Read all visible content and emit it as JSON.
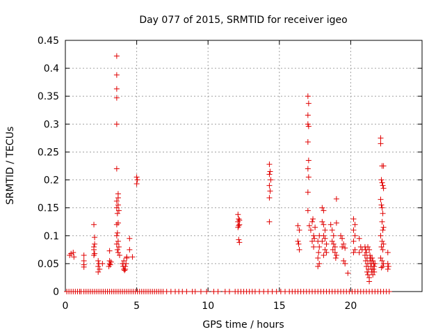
{
  "chart_data": {
    "type": "scatter",
    "title": "Day 077 of 2015, SRMTID for receiver igeo",
    "xlabel": "GPS time / hours",
    "ylabel": "SRMTID / TECUs",
    "xlim": [
      0,
      25
    ],
    "ylim": [
      0,
      0.45
    ],
    "xticks": [
      0,
      5,
      10,
      15,
      20
    ],
    "yticks": [
      0,
      0.05,
      0.1,
      0.15,
      0.2,
      0.25,
      0.3,
      0.35,
      0.4,
      0.45
    ],
    "xtick_labels": [
      "0",
      "5",
      "10",
      "15",
      "20"
    ],
    "ytick_labels": [
      "0",
      "0.05",
      "0.1",
      "0.15",
      "0.2",
      "0.25",
      "0.3",
      "0.35",
      "0.4",
      "0.45"
    ],
    "grid": true,
    "marker": "+",
    "color": "#e00000",
    "series": [
      {
        "name": "SRMTID",
        "points": [
          [
            0.3,
            0.065
          ],
          [
            0.4,
            0.068
          ],
          [
            0.55,
            0.07
          ],
          [
            0.6,
            0.062
          ],
          [
            1.3,
            0.065
          ],
          [
            1.3,
            0.055
          ],
          [
            1.3,
            0.048
          ],
          [
            1.3,
            0.044
          ],
          [
            2.0,
            0.12
          ],
          [
            2.05,
            0.097
          ],
          [
            2.05,
            0.085
          ],
          [
            2.0,
            0.08
          ],
          [
            2.0,
            0.075
          ],
          [
            2.05,
            0.068
          ],
          [
            2.0,
            0.065
          ],
          [
            2.3,
            0.055
          ],
          [
            2.35,
            0.05
          ],
          [
            2.3,
            0.045
          ],
          [
            2.4,
            0.04
          ],
          [
            2.3,
            0.035
          ],
          [
            2.6,
            0.05
          ],
          [
            3.1,
            0.073
          ],
          [
            3.1,
            0.055
          ],
          [
            3.1,
            0.05
          ],
          [
            3.15,
            0.048
          ],
          [
            3.2,
            0.053
          ],
          [
            3.05,
            0.045
          ],
          [
            3.6,
            0.422
          ],
          [
            3.6,
            0.388
          ],
          [
            3.6,
            0.363
          ],
          [
            3.6,
            0.347
          ],
          [
            3.6,
            0.3
          ],
          [
            3.6,
            0.22
          ],
          [
            3.7,
            0.175
          ],
          [
            3.7,
            0.168
          ],
          [
            3.6,
            0.162
          ],
          [
            3.7,
            0.155
          ],
          [
            3.6,
            0.15
          ],
          [
            3.75,
            0.145
          ],
          [
            3.65,
            0.14
          ],
          [
            3.7,
            0.123
          ],
          [
            3.6,
            0.12
          ],
          [
            3.65,
            0.105
          ],
          [
            3.6,
            0.1
          ],
          [
            3.7,
            0.09
          ],
          [
            3.6,
            0.085
          ],
          [
            3.75,
            0.08
          ],
          [
            3.65,
            0.075
          ],
          [
            3.7,
            0.07
          ],
          [
            3.8,
            0.065
          ],
          [
            4.0,
            0.05
          ],
          [
            4.05,
            0.045
          ],
          [
            4.1,
            0.04
          ],
          [
            4.15,
            0.038
          ],
          [
            4.2,
            0.045
          ],
          [
            4.25,
            0.05
          ],
          [
            4.3,
            0.06
          ],
          [
            4.1,
            0.055
          ],
          [
            4.2,
            0.04
          ],
          [
            4.3,
            0.062
          ],
          [
            4.5,
            0.095
          ],
          [
            4.5,
            0.075
          ],
          [
            4.7,
            0.062
          ],
          [
            5.0,
            0.205
          ],
          [
            5.05,
            0.2
          ],
          [
            5.0,
            0.193
          ],
          [
            12.1,
            0.138
          ],
          [
            12.15,
            0.13
          ],
          [
            12.1,
            0.125
          ],
          [
            12.2,
            0.12
          ],
          [
            12.15,
            0.118
          ],
          [
            12.1,
            0.115
          ],
          [
            12.2,
            0.128
          ],
          [
            12.15,
            0.093
          ],
          [
            12.2,
            0.088
          ],
          [
            14.3,
            0.228
          ],
          [
            14.35,
            0.215
          ],
          [
            14.3,
            0.21
          ],
          [
            14.4,
            0.2
          ],
          [
            14.3,
            0.19
          ],
          [
            14.35,
            0.18
          ],
          [
            14.3,
            0.168
          ],
          [
            14.3,
            0.125
          ],
          [
            16.3,
            0.118
          ],
          [
            16.4,
            0.11
          ],
          [
            16.3,
            0.09
          ],
          [
            16.35,
            0.085
          ],
          [
            16.4,
            0.075
          ],
          [
            17.0,
            0.35
          ],
          [
            17.05,
            0.337
          ],
          [
            17.0,
            0.316
          ],
          [
            17.0,
            0.3
          ],
          [
            17.05,
            0.296
          ],
          [
            17.0,
            0.268
          ],
          [
            17.05,
            0.235
          ],
          [
            17.0,
            0.22
          ],
          [
            17.05,
            0.205
          ],
          [
            17.0,
            0.178
          ],
          [
            17.0,
            0.145
          ],
          [
            17.1,
            0.118
          ],
          [
            17.2,
            0.11
          ],
          [
            17.3,
            0.125
          ],
          [
            17.35,
            0.13
          ],
          [
            17.4,
            0.1
          ],
          [
            17.3,
            0.09
          ],
          [
            17.4,
            0.08
          ],
          [
            17.5,
            0.115
          ],
          [
            17.45,
            0.095
          ],
          [
            17.8,
            0.1
          ],
          [
            17.7,
            0.09
          ],
          [
            17.8,
            0.08
          ],
          [
            17.75,
            0.07
          ],
          [
            17.7,
            0.06
          ],
          [
            17.8,
            0.05
          ],
          [
            17.7,
            0.045
          ],
          [
            18.0,
            0.15
          ],
          [
            18.1,
            0.145
          ],
          [
            18.0,
            0.125
          ],
          [
            18.1,
            0.12
          ],
          [
            18.2,
            0.11
          ],
          [
            18.1,
            0.1
          ],
          [
            18.2,
            0.095
          ],
          [
            18.0,
            0.09
          ],
          [
            18.3,
            0.085
          ],
          [
            18.2,
            0.075
          ],
          [
            18.3,
            0.07
          ],
          [
            18.1,
            0.065
          ],
          [
            18.6,
            0.12
          ],
          [
            18.7,
            0.11
          ],
          [
            18.8,
            0.1
          ],
          [
            18.7,
            0.09
          ],
          [
            18.8,
            0.085
          ],
          [
            18.9,
            0.08
          ],
          [
            18.75,
            0.075
          ],
          [
            18.9,
            0.07
          ],
          [
            19.0,
            0.065
          ],
          [
            18.95,
            0.06
          ],
          [
            19.0,
            0.166
          ],
          [
            19.0,
            0.123
          ],
          [
            19.3,
            0.1
          ],
          [
            19.4,
            0.095
          ],
          [
            19.5,
            0.085
          ],
          [
            19.4,
            0.08
          ],
          [
            19.6,
            0.078
          ],
          [
            19.5,
            0.055
          ],
          [
            19.6,
            0.05
          ],
          [
            19.8,
            0.033
          ],
          [
            20.2,
            0.13
          ],
          [
            20.3,
            0.12
          ],
          [
            20.2,
            0.11
          ],
          [
            20.3,
            0.1
          ],
          [
            20.2,
            0.09
          ],
          [
            20.3,
            0.075
          ],
          [
            20.2,
            0.07
          ],
          [
            20.6,
            0.095
          ],
          [
            20.7,
            0.08
          ],
          [
            20.8,
            0.075
          ],
          [
            20.6,
            0.07
          ],
          [
            21.0,
            0.08
          ],
          [
            21.05,
            0.075
          ],
          [
            21.1,
            0.07
          ],
          [
            21.0,
            0.065
          ],
          [
            21.15,
            0.06
          ],
          [
            21.05,
            0.055
          ],
          [
            21.2,
            0.05
          ],
          [
            21.1,
            0.045
          ],
          [
            21.25,
            0.04
          ],
          [
            21.15,
            0.035
          ],
          [
            21.2,
            0.03
          ],
          [
            21.3,
            0.025
          ],
          [
            21.3,
            0.018
          ],
          [
            21.35,
            0.065
          ],
          [
            21.4,
            0.06
          ],
          [
            21.35,
            0.055
          ],
          [
            21.45,
            0.05
          ],
          [
            21.4,
            0.045
          ],
          [
            21.5,
            0.04
          ],
          [
            21.45,
            0.035
          ],
          [
            21.55,
            0.03
          ],
          [
            21.5,
            0.06
          ],
          [
            21.55,
            0.055
          ],
          [
            21.6,
            0.05
          ],
          [
            21.65,
            0.045
          ],
          [
            21.6,
            0.04
          ],
          [
            21.65,
            0.035
          ],
          [
            21.7,
            0.05
          ],
          [
            21.2,
            0.08
          ],
          [
            21.3,
            0.075
          ],
          [
            22.1,
            0.275
          ],
          [
            22.1,
            0.265
          ],
          [
            22.2,
            0.225
          ],
          [
            22.3,
            0.225
          ],
          [
            22.15,
            0.2
          ],
          [
            22.2,
            0.195
          ],
          [
            22.25,
            0.19
          ],
          [
            22.3,
            0.185
          ],
          [
            22.1,
            0.165
          ],
          [
            22.15,
            0.155
          ],
          [
            22.2,
            0.15
          ],
          [
            22.25,
            0.14
          ],
          [
            22.2,
            0.125
          ],
          [
            22.3,
            0.115
          ],
          [
            22.25,
            0.11
          ],
          [
            22.1,
            0.1
          ],
          [
            22.2,
            0.09
          ],
          [
            22.3,
            0.085
          ],
          [
            22.15,
            0.08
          ],
          [
            22.25,
            0.075
          ],
          [
            22.1,
            0.06
          ],
          [
            22.2,
            0.055
          ],
          [
            22.3,
            0.05
          ],
          [
            22.25,
            0.045
          ],
          [
            22.15,
            0.043
          ],
          [
            22.6,
            0.07
          ],
          [
            22.6,
            0.05
          ],
          [
            22.65,
            0.045
          ],
          [
            22.6,
            0.04
          ]
        ],
        "zero_points_x": [
          0.1,
          0.25,
          0.4,
          0.55,
          0.7,
          0.85,
          1.0,
          1.1,
          1.3,
          1.45,
          1.6,
          1.75,
          1.9,
          2.05,
          2.2,
          2.35,
          2.5,
          2.65,
          2.8,
          2.95,
          3.1,
          3.25,
          3.4,
          3.55,
          3.7,
          3.85,
          4.0,
          4.15,
          4.3,
          4.45,
          4.6,
          4.75,
          4.9,
          5.05,
          5.2,
          5.35,
          5.5,
          5.65,
          5.8,
          5.95,
          6.1,
          6.25,
          6.4,
          6.55,
          6.7,
          6.85,
          7.1,
          7.4,
          7.7,
          7.95,
          8.2,
          8.5,
          8.9,
          9.1,
          9.5,
          9.9,
          10.4,
          10.7,
          11.2,
          11.5,
          11.9,
          12.1,
          12.3,
          12.5,
          12.7,
          12.9,
          13.1,
          13.3,
          13.6,
          13.9,
          14.2,
          14.5,
          14.8,
          15.1,
          15.4,
          15.7,
          15.9,
          16.1,
          16.3,
          16.5,
          16.7,
          16.9,
          17.1,
          17.3,
          17.5,
          17.7,
          17.9,
          18.1,
          18.3,
          18.5,
          18.7,
          18.9,
          19.1,
          19.3,
          19.5,
          19.7,
          19.9,
          20.1,
          20.3,
          20.5,
          20.7,
          20.9,
          21.1,
          21.3,
          21.5,
          21.7,
          21.9,
          22.1,
          22.3,
          22.5,
          22.7
        ]
      }
    ]
  }
}
